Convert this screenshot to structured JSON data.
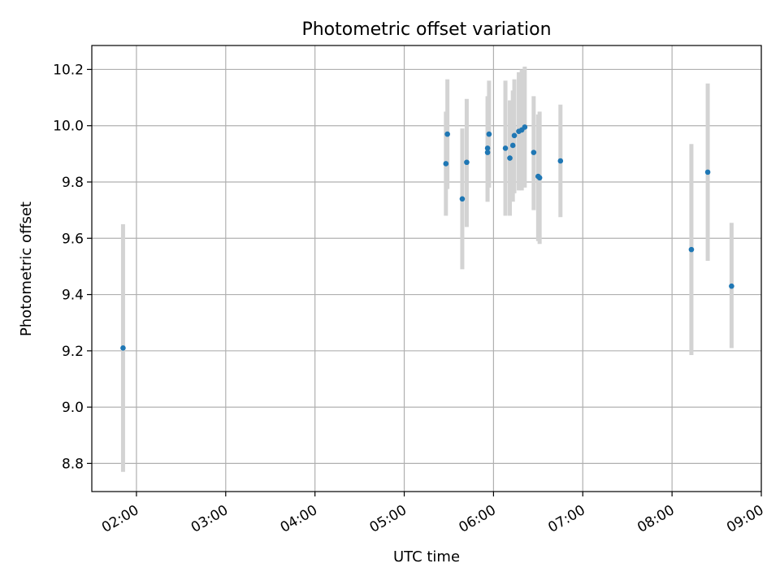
{
  "chart_data": {
    "type": "scatter",
    "title": "Photometric offset variation",
    "xlabel": "UTC time",
    "ylabel": "Photometric offset",
    "x_tick_labels": [
      "02:00",
      "03:00",
      "04:00",
      "05:00",
      "06:00",
      "07:00",
      "08:00",
      "09:00"
    ],
    "x_ticks": [
      "02:00",
      "03:00",
      "04:00",
      "05:00",
      "06:00",
      "07:00",
      "08:00",
      "09:00"
    ],
    "y_tick_labels": [
      "8.8",
      "9.0",
      "9.2",
      "9.4",
      "9.6",
      "9.8",
      "10.0",
      "10.2"
    ],
    "y_ticks": [
      8.8,
      9.0,
      9.2,
      9.4,
      9.6,
      9.8,
      10.0,
      10.2
    ],
    "xlim": [
      "01:30",
      "09:00"
    ],
    "ylim": [
      8.7,
      10.285
    ],
    "grid": true,
    "marker_color": "#1f77b4",
    "errorbar_color": "#d3d3d3",
    "points": [
      {
        "time": "01:51",
        "y": 9.21,
        "lo": 8.77,
        "hi": 9.65
      },
      {
        "time": "05:28",
        "y": 9.865,
        "lo": 9.68,
        "hi": 10.05
      },
      {
        "time": "05:29",
        "y": 9.97,
        "lo": 9.775,
        "hi": 10.165
      },
      {
        "time": "05:39",
        "y": 9.74,
        "lo": 9.49,
        "hi": 9.99
      },
      {
        "time": "05:42",
        "y": 9.87,
        "lo": 9.64,
        "hi": 10.095
      },
      {
        "time": "05:56",
        "y": 9.92,
        "lo": 9.73,
        "hi": 10.105
      },
      {
        "time": "05:56",
        "y": 9.905,
        "lo": 9.73,
        "hi": 10.08
      },
      {
        "time": "05:57",
        "y": 9.97,
        "lo": 9.78,
        "hi": 10.16
      },
      {
        "time": "06:08",
        "y": 9.92,
        "lo": 9.68,
        "hi": 10.16
      },
      {
        "time": "06:11",
        "y": 9.885,
        "lo": 9.68,
        "hi": 10.09
      },
      {
        "time": "06:13",
        "y": 9.93,
        "lo": 9.73,
        "hi": 10.125
      },
      {
        "time": "06:14",
        "y": 9.965,
        "lo": 9.76,
        "hi": 10.165
      },
      {
        "time": "06:17",
        "y": 9.98,
        "lo": 9.77,
        "hi": 10.19
      },
      {
        "time": "06:19",
        "y": 9.985,
        "lo": 9.77,
        "hi": 10.2
      },
      {
        "time": "06:21",
        "y": 9.995,
        "lo": 9.78,
        "hi": 10.21
      },
      {
        "time": "06:27",
        "y": 9.905,
        "lo": 9.7,
        "hi": 10.105
      },
      {
        "time": "06:30",
        "y": 9.82,
        "lo": 9.59,
        "hi": 10.04
      },
      {
        "time": "06:31",
        "y": 9.815,
        "lo": 9.58,
        "hi": 10.05
      },
      {
        "time": "06:45",
        "y": 9.875,
        "lo": 9.675,
        "hi": 10.075
      },
      {
        "time": "08:13",
        "y": 9.56,
        "lo": 9.185,
        "hi": 9.935
      },
      {
        "time": "08:24",
        "y": 9.835,
        "lo": 9.52,
        "hi": 10.15
      },
      {
        "time": "08:40",
        "y": 9.43,
        "lo": 9.21,
        "hi": 9.655
      }
    ]
  }
}
